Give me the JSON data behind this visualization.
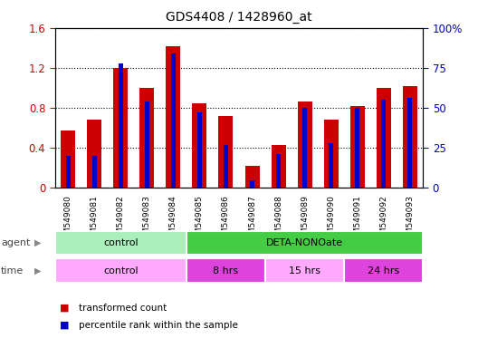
{
  "title": "GDS4408 / 1428960_at",
  "samples": [
    "GSM549080",
    "GSM549081",
    "GSM549082",
    "GSM549083",
    "GSM549084",
    "GSM549085",
    "GSM549086",
    "GSM549087",
    "GSM549088",
    "GSM549089",
    "GSM549090",
    "GSM549091",
    "GSM549092",
    "GSM549093"
  ],
  "transformed_count": [
    0.57,
    0.68,
    1.2,
    1.0,
    1.42,
    0.85,
    0.72,
    0.22,
    0.43,
    0.86,
    0.68,
    0.82,
    1.0,
    1.02
  ],
  "percentile_rank": [
    20,
    20,
    78,
    54,
    84,
    47,
    27,
    5,
    21,
    50,
    28,
    50,
    55,
    56
  ],
  "ylim_left": [
    0,
    1.6
  ],
  "ylim_right": [
    0,
    100
  ],
  "yticks_left": [
    0,
    0.4,
    0.8,
    1.2,
    1.6
  ],
  "yticks_right": [
    0,
    25,
    50,
    75,
    100
  ],
  "ytick_labels_left": [
    "0",
    "0.4",
    "0.8",
    "1.2",
    "1.6"
  ],
  "ytick_labels_right": [
    "0",
    "25",
    "50",
    "75",
    "100%"
  ],
  "bar_color_red": "#cc0000",
  "bar_color_blue": "#0000cc",
  "red_bar_width": 0.55,
  "blue_bar_width": 0.18,
  "agent_control_color": "#aaeebb",
  "agent_treatment_color": "#44cc44",
  "time_color_light": "#ffaaff",
  "time_color_dark": "#dd44dd",
  "control_n": 5,
  "time_8hrs_n": 3,
  "time_15hrs_n": 3,
  "time_24hrs_n": 3,
  "background_color": "#ffffff",
  "tick_color_left": "#cc0000",
  "tick_color_right": "#0000cc",
  "legend_items": [
    {
      "label": "transformed count",
      "color": "#cc0000"
    },
    {
      "label": "percentile rank within the sample",
      "color": "#0000cc"
    }
  ]
}
